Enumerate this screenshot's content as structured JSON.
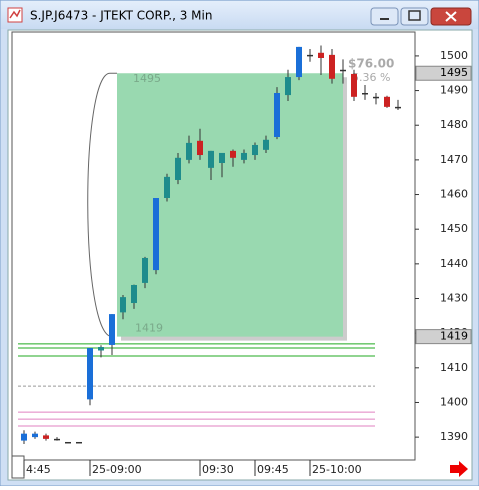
{
  "window_title": "S.JP.J6473 - JTEKT CORP., 3 Min",
  "chart_data": {
    "type": "candlestick",
    "categories": [
      "4:45",
      null,
      null,
      null,
      null,
      null,
      "25-09:00",
      null,
      null,
      null,
      null,
      null,
      null,
      null,
      null,
      null,
      "09:30",
      null,
      null,
      null,
      null,
      "09:45",
      null,
      null,
      null,
      null,
      "25-10:00",
      null,
      null,
      null,
      null,
      null,
      null,
      null,
      null
    ],
    "open": [
      1389,
      1390,
      1390.5,
      1389.5,
      1388.6,
      1388.6,
      1400.9,
      1415,
      1416.6,
      1426,
      1428.7,
      1434.5,
      1438.2,
      1459,
      1464.2,
      1470,
      1475.5,
      1467.7,
      1469.1,
      1472.6,
      1470,
      1471.4,
      1472.9,
      1476.6,
      1488.7,
      1493.9,
      1500.3,
      1500.9,
      1500.3,
      1496,
      1494.8,
      1489.3,
      1488.2,
      1488.2,
      1485.3
    ],
    "high": [
      1392,
      1391.6,
      1391,
      1390,
      1388.6,
      1388.6,
      1415.7,
      1416.5,
      1425.5,
      1431,
      1434,
      1442,
      1459,
      1466,
      1472,
      1477,
      1479,
      1472.6,
      1472,
      1473,
      1473,
      1475,
      1477,
      1491,
      1496,
      1502.6,
      1502,
      1503,
      1502,
      1499,
      1496,
      1491.6,
      1489.3,
      1488.5,
      1487.3
    ],
    "low": [
      1388,
      1389.5,
      1389,
      1389,
      1388.6,
      1388.6,
      1399.2,
      1413,
      1413.7,
      1424,
      1427,
      1433,
      1437,
      1458,
      1463,
      1469,
      1470,
      1464.2,
      1465,
      1468,
      1469,
      1470,
      1472,
      1476,
      1487,
      1493,
      1498.3,
      1494.5,
      1492,
      1492,
      1487,
      1487.3,
      1486,
      1485,
      1484.4
    ],
    "close": [
      1391,
      1391,
      1389.5,
      1389.5,
      1388.6,
      1388.6,
      1415.7,
      1416,
      1425.5,
      1430.4,
      1433.9,
      1441.7,
      1459,
      1465.1,
      1470.6,
      1474.9,
      1471.4,
      1472.6,
      1472,
      1470.6,
      1472,
      1474.3,
      1475.8,
      1489.3,
      1493.9,
      1502.6,
      1500.3,
      1499.4,
      1493.4,
      1496,
      1488.2,
      1489.3,
      1488.2,
      1485.3,
      1485.3
    ],
    "colors": [
      "#1a6fd8",
      "#1a6fd8",
      "#cc2222",
      "#333333",
      "#333333",
      "#333333",
      "#1a6fd8",
      "#1e8c8c",
      "#1a6fd8",
      "#1e8c8c",
      "#1e8c8c",
      "#1e8c8c",
      "#1a6fd8",
      "#1e8c8c",
      "#1e8c8c",
      "#1e8c8c",
      "#cc2222",
      "#1e8c8c",
      "#1e8c8c",
      "#cc2222",
      "#1e8c8c",
      "#1e8c8c",
      "#1e8c8c",
      "#1a6fd8",
      "#1e8c8c",
      "#1a6fd8",
      "#333333",
      "#cc2222",
      "#cc2222",
      "#333333",
      "#cc2222",
      "#333333",
      "#333333",
      "#cc2222",
      "#333333"
    ],
    "ylim": [
      1383.4,
      1506.9
    ],
    "yticks": [
      1390,
      1400,
      1410,
      1420,
      1430,
      1440,
      1450,
      1460,
      1470,
      1480,
      1490,
      1500
    ],
    "box": {
      "high": 1495,
      "low": 1419,
      "change": "$76.00",
      "percent": "5.36 %",
      "color": "#99d9b0"
    },
    "levels": [
      {
        "value": 1416.9,
        "color": "#22aa22"
      },
      {
        "value": 1415.7,
        "color": "#22aa22"
      },
      {
        "value": 1413.4,
        "color": "#22aa22"
      },
      {
        "value": 1404.7,
        "color": "#999999"
      },
      {
        "value": 1397.2,
        "color": "#e080c0"
      },
      {
        "value": 1395.2,
        "color": "#e080c0"
      },
      {
        "value": 1393.2,
        "color": "#e080c0"
      }
    ],
    "price_markers": [
      1495,
      1419
    ]
  }
}
